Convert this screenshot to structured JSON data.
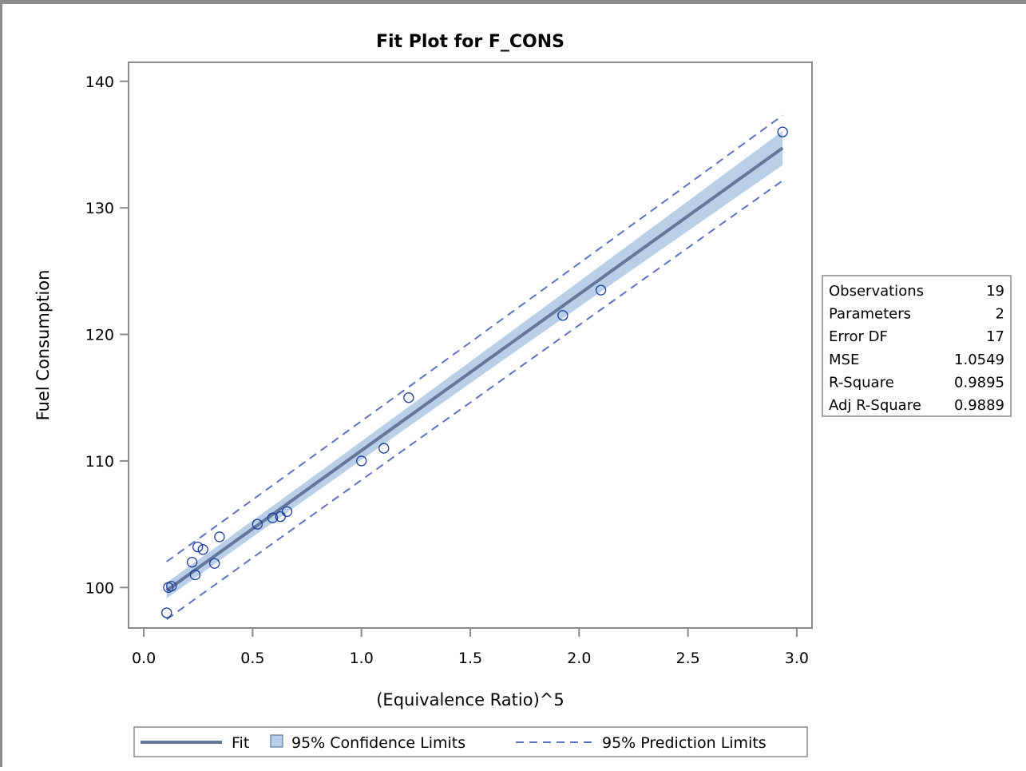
{
  "chart_data": {
    "type": "scatter",
    "title": "Fit Plot for F_CONS",
    "xlabel": "(Equivalence Ratio)^5",
    "ylabel": "Fuel Consumption",
    "xlim": [
      -0.07,
      3.07
    ],
    "ylim": [
      96.8,
      141.5
    ],
    "xticks": [
      0.0,
      0.5,
      1.0,
      1.5,
      2.0,
      2.5,
      3.0
    ],
    "xtick_labels": [
      "0.0",
      "0.5",
      "1.0",
      "1.5",
      "2.0",
      "2.5",
      "3.0"
    ],
    "yticks": [
      100,
      110,
      120,
      130,
      140
    ],
    "ytick_labels": [
      "100",
      "110",
      "120",
      "130",
      "140"
    ],
    "grid": false,
    "points": [
      {
        "x": 0.105,
        "y": 98.0
      },
      {
        "x": 0.113,
        "y": 100.0
      },
      {
        "x": 0.127,
        "y": 100.1
      },
      {
        "x": 0.222,
        "y": 102.0
      },
      {
        "x": 0.236,
        "y": 101.0
      },
      {
        "x": 0.248,
        "y": 103.2
      },
      {
        "x": 0.272,
        "y": 103.0
      },
      {
        "x": 0.325,
        "y": 101.9
      },
      {
        "x": 0.348,
        "y": 104.0
      },
      {
        "x": 0.522,
        "y": 105.0
      },
      {
        "x": 0.592,
        "y": 105.5
      },
      {
        "x": 0.628,
        "y": 105.6
      },
      {
        "x": 0.658,
        "y": 106.0
      },
      {
        "x": 1.0,
        "y": 110.0
      },
      {
        "x": 1.103,
        "y": 111.0
      },
      {
        "x": 1.217,
        "y": 115.0
      },
      {
        "x": 1.925,
        "y": 121.5
      },
      {
        "x": 2.1,
        "y": 123.5
      },
      {
        "x": 2.935,
        "y": 136.0
      }
    ],
    "fit": {
      "x_range": [
        0.105,
        2.935
      ],
      "y_range": [
        99.76,
        134.73
      ],
      "conf_halfwidth_ends": [
        0.62,
        1.35
      ],
      "pred_halfwidth_ends": [
        2.28,
        2.58
      ]
    },
    "colors": {
      "fit_line": "#64789c",
      "confidence_band": "#b9cfe7",
      "prediction_line": "#5e72c0",
      "marker": "#1a3a9c",
      "axis": "#8a8a8a"
    },
    "legend": {
      "placement": "bottom",
      "entries": [
        "Fit",
        "95% Confidence Limits",
        "95% Prediction Limits"
      ]
    },
    "stats_table": {
      "placement": "right",
      "rows": [
        {
          "label": "Observations",
          "value": "19"
        },
        {
          "label": "Parameters",
          "value": "2"
        },
        {
          "label": "Error DF",
          "value": "17"
        },
        {
          "label": "MSE",
          "value": "1.0549"
        },
        {
          "label": "R-Square",
          "value": "0.9895"
        },
        {
          "label": "Adj R-Square",
          "value": "0.9889"
        }
      ]
    }
  }
}
